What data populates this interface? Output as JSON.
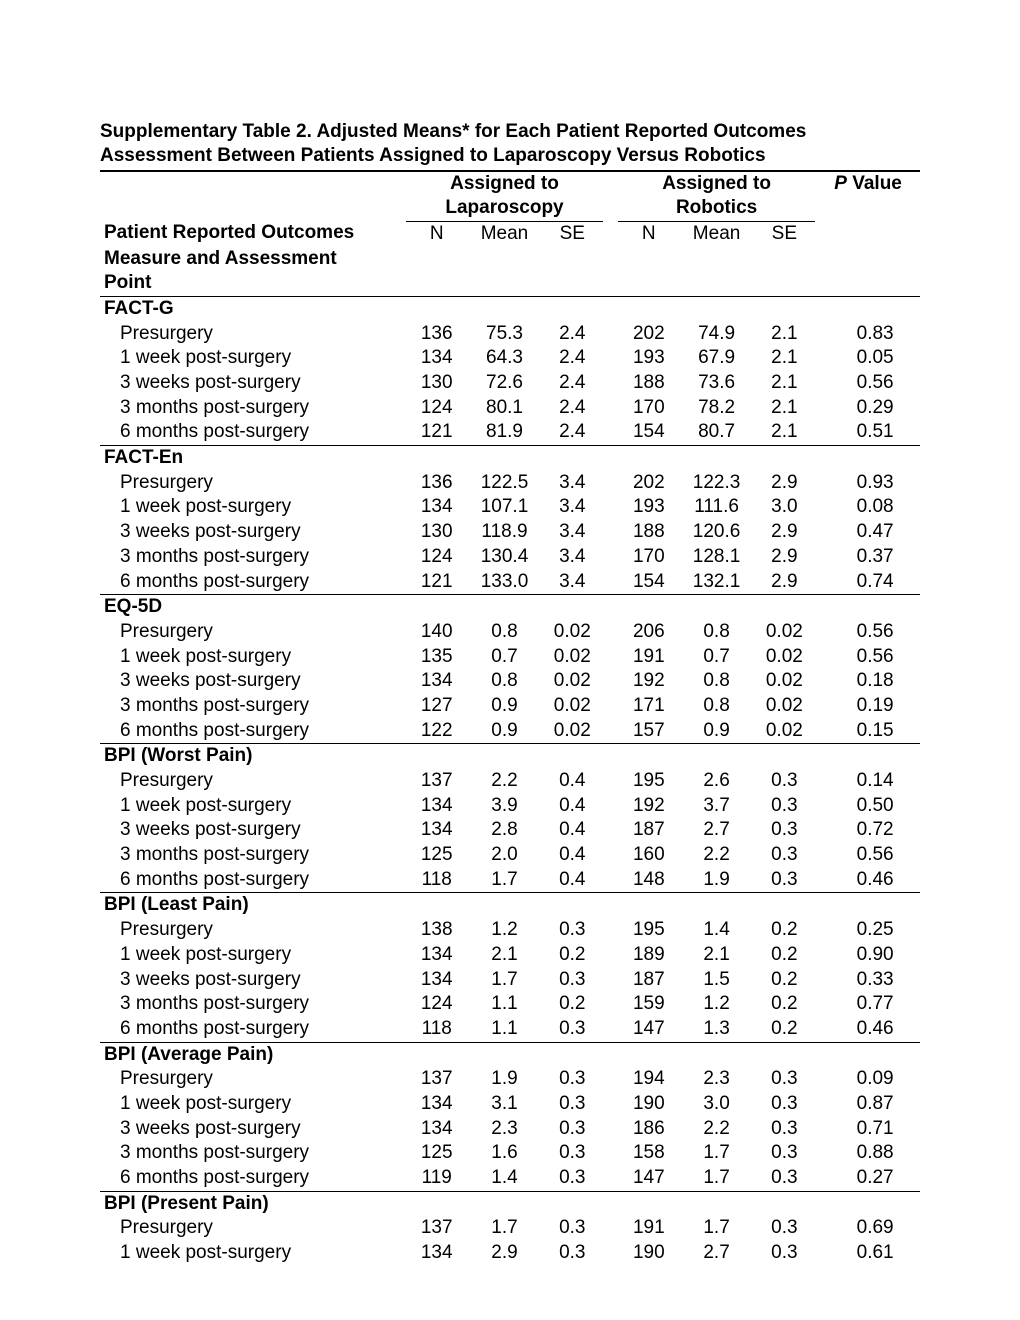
{
  "title_line1": "Supplementary Table  2. Adjusted Means* for Each Patient Reported Outcomes",
  "title_line2": "Assessment  Between Patients Assigned to Laparoscopy Versus Robotics",
  "header": {
    "group_lap": "Assigned to Laparoscopy",
    "group_rob": "Assigned to Robotics",
    "pvalue_prefix": "P",
    "pvalue_suffix": " Value",
    "row_label_line1": "Patient Reported Outcomes",
    "row_label_line2": "Measure and Assessment",
    "row_label_line3": "Point",
    "n": "N",
    "mean": "Mean",
    "se": "SE"
  },
  "sections": [
    {
      "name": "FACT-G",
      "rows": [
        {
          "label": "Presurgery",
          "n1": "136",
          "m1": "75.3",
          "s1": "2.4",
          "n2": "202",
          "m2": "74.9",
          "s2": "2.1",
          "p": "0.83"
        },
        {
          "label": "1 week post-surgery",
          "n1": "134",
          "m1": "64.3",
          "s1": "2.4",
          "n2": "193",
          "m2": "67.9",
          "s2": "2.1",
          "p": "0.05"
        },
        {
          "label": "3 weeks post-surgery",
          "n1": "130",
          "m1": "72.6",
          "s1": "2.4",
          "n2": "188",
          "m2": "73.6",
          "s2": "2.1",
          "p": "0.56"
        },
        {
          "label": "3 months post-surgery",
          "n1": "124",
          "m1": "80.1",
          "s1": "2.4",
          "n2": "170",
          "m2": "78.2",
          "s2": "2.1",
          "p": "0.29"
        },
        {
          "label": "6 months post-surgery",
          "n1": "121",
          "m1": "81.9",
          "s1": "2.4",
          "n2": "154",
          "m2": "80.7",
          "s2": "2.1",
          "p": "0.51"
        }
      ]
    },
    {
      "name": "FACT-En",
      "rows": [
        {
          "label": "Presurgery",
          "n1": "136",
          "m1": "122.5",
          "s1": "3.4",
          "n2": "202",
          "m2": "122.3",
          "s2": "2.9",
          "p": "0.93"
        },
        {
          "label": "1 week post-surgery",
          "n1": "134",
          "m1": "107.1",
          "s1": "3.4",
          "n2": "193",
          "m2": "111.6",
          "s2": "3.0",
          "p": "0.08"
        },
        {
          "label": "3 weeks post-surgery",
          "n1": "130",
          "m1": "118.9",
          "s1": "3.4",
          "n2": "188",
          "m2": "120.6",
          "s2": "2.9",
          "p": "0.47"
        },
        {
          "label": "3 months post-surgery",
          "n1": "124",
          "m1": "130.4",
          "s1": "3.4",
          "n2": "170",
          "m2": "128.1",
          "s2": "2.9",
          "p": "0.37"
        },
        {
          "label": "6 months post-surgery",
          "n1": "121",
          "m1": "133.0",
          "s1": "3.4",
          "n2": "154",
          "m2": "132.1",
          "s2": "2.9",
          "p": "0.74"
        }
      ]
    },
    {
      "name": "EQ-5D",
      "rows": [
        {
          "label": "Presurgery",
          "n1": "140",
          "m1": "0.8",
          "s1": "0.02",
          "n2": "206",
          "m2": "0.8",
          "s2": "0.02",
          "p": "0.56"
        },
        {
          "label": "1 week post-surgery",
          "n1": "135",
          "m1": "0.7",
          "s1": "0.02",
          "n2": "191",
          "m2": "0.7",
          "s2": "0.02",
          "p": "0.56"
        },
        {
          "label": "3 weeks post-surgery",
          "n1": "134",
          "m1": "0.8",
          "s1": "0.02",
          "n2": "192",
          "m2": "0.8",
          "s2": "0.02",
          "p": "0.18"
        },
        {
          "label": "3 months post-surgery",
          "n1": "127",
          "m1": "0.9",
          "s1": "0.02",
          "n2": "171",
          "m2": "0.8",
          "s2": "0.02",
          "p": "0.19"
        },
        {
          "label": "6 months post-surgery",
          "n1": "122",
          "m1": "0.9",
          "s1": "0.02",
          "n2": "157",
          "m2": "0.9",
          "s2": "0.02",
          "p": "0.15"
        }
      ]
    },
    {
      "name": "BPI (Worst Pain)",
      "rows": [
        {
          "label": "Presurgery",
          "n1": "137",
          "m1": "2.2",
          "s1": "0.4",
          "n2": "195",
          "m2": "2.6",
          "s2": "0.3",
          "p": "0.14"
        },
        {
          "label": "1 week post-surgery",
          "n1": "134",
          "m1": "3.9",
          "s1": "0.4",
          "n2": "192",
          "m2": "3.7",
          "s2": "0.3",
          "p": "0.50"
        },
        {
          "label": "3 weeks post-surgery",
          "n1": "134",
          "m1": "2.8",
          "s1": "0.4",
          "n2": "187",
          "m2": "2.7",
          "s2": "0.3",
          "p": "0.72"
        },
        {
          "label": "3 months post-surgery",
          "n1": "125",
          "m1": "2.0",
          "s1": "0.4",
          "n2": "160",
          "m2": "2.2",
          "s2": "0.3",
          "p": "0.56"
        },
        {
          "label": "6 months post-surgery",
          "n1": "118",
          "m1": "1.7",
          "s1": "0.4",
          "n2": "148",
          "m2": "1.9",
          "s2": "0.3",
          "p": "0.46"
        }
      ]
    },
    {
      "name": "BPI (Least Pain)",
      "rows": [
        {
          "label": "Presurgery",
          "n1": "138",
          "m1": "1.2",
          "s1": "0.3",
          "n2": "195",
          "m2": "1.4",
          "s2": "0.2",
          "p": "0.25"
        },
        {
          "label": "1 week post-surgery",
          "n1": "134",
          "m1": "2.1",
          "s1": "0.2",
          "n2": "189",
          "m2": "2.1",
          "s2": "0.2",
          "p": "0.90"
        },
        {
          "label": "3 weeks post-surgery",
          "n1": "134",
          "m1": "1.7",
          "s1": "0.3",
          "n2": "187",
          "m2": "1.5",
          "s2": "0.2",
          "p": "0.33"
        },
        {
          "label": "3 months post-surgery",
          "n1": "124",
          "m1": "1.1",
          "s1": "0.2",
          "n2": "159",
          "m2": "1.2",
          "s2": "0.2",
          "p": "0.77"
        },
        {
          "label": "6 months post-surgery",
          "n1": "118",
          "m1": "1.1",
          "s1": "0.3",
          "n2": "147",
          "m2": "1.3",
          "s2": "0.2",
          "p": "0.46"
        }
      ]
    },
    {
      "name": "BPI (Average Pain)",
      "rows": [
        {
          "label": "Presurgery",
          "n1": "137",
          "m1": "1.9",
          "s1": "0.3",
          "n2": "194",
          "m2": "2.3",
          "s2": "0.3",
          "p": "0.09"
        },
        {
          "label": "1 week post-surgery",
          "n1": "134",
          "m1": "3.1",
          "s1": "0.3",
          "n2": "190",
          "m2": "3.0",
          "s2": "0.3",
          "p": "0.87"
        },
        {
          "label": "3 weeks post-surgery",
          "n1": "134",
          "m1": "2.3",
          "s1": "0.3",
          "n2": "186",
          "m2": "2.2",
          "s2": "0.3",
          "p": "0.71"
        },
        {
          "label": "3 months post-surgery",
          "n1": "125",
          "m1": "1.6",
          "s1": "0.3",
          "n2": "158",
          "m2": "1.7",
          "s2": "0.3",
          "p": "0.88"
        },
        {
          "label": "6 months post-surgery",
          "n1": "119",
          "m1": "1.4",
          "s1": "0.3",
          "n2": "147",
          "m2": "1.7",
          "s2": "0.3",
          "p": "0.27"
        }
      ]
    },
    {
      "name": "BPI (Present Pain)",
      "rows": [
        {
          "label": "Presurgery",
          "n1": "137",
          "m1": "1.7",
          "s1": "0.3",
          "n2": "191",
          "m2": "1.7",
          "s2": "0.3",
          "p": "0.69"
        },
        {
          "label": "1 week post-surgery",
          "n1": "134",
          "m1": "2.9",
          "s1": "0.3",
          "n2": "190",
          "m2": "2.7",
          "s2": "0.3",
          "p": "0.61"
        }
      ],
      "openEnded": true
    }
  ]
}
